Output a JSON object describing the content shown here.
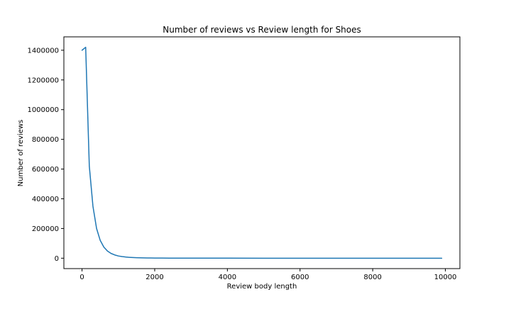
{
  "chart_data": {
    "type": "line",
    "title": "Number of reviews vs Review length for Shoes",
    "xlabel": "Review body length",
    "ylabel": "Number of reviews",
    "xlim": [
      -500,
      10400
    ],
    "ylim": [
      -70000,
      1490000
    ],
    "x_ticks": [
      0,
      2000,
      4000,
      6000,
      8000,
      10000
    ],
    "y_ticks": [
      0,
      200000,
      400000,
      600000,
      800000,
      1000000,
      1200000,
      1400000
    ],
    "grid": false,
    "legend": "none",
    "series": [
      {
        "color": "#1f77b4",
        "x": [
          0,
          100,
          200,
          300,
          400,
          500,
          600,
          700,
          800,
          900,
          1000,
          1100,
          1200,
          1300,
          1400,
          1500,
          1600,
          1700,
          1800,
          1900,
          2000,
          2200,
          2400,
          2600,
          2800,
          3000,
          3500,
          4000,
          5000,
          6000,
          7000,
          8000,
          9000,
          9900
        ],
        "values": [
          1400000,
          1420000,
          620000,
          350000,
          200000,
          120000,
          75000,
          48000,
          32000,
          22000,
          15000,
          11000,
          8000,
          6000,
          4500,
          3500,
          2700,
          2100,
          1700,
          1400,
          1100,
          800,
          600,
          450,
          350,
          250,
          150,
          100,
          50,
          30,
          20,
          10,
          5,
          0
        ]
      }
    ]
  }
}
